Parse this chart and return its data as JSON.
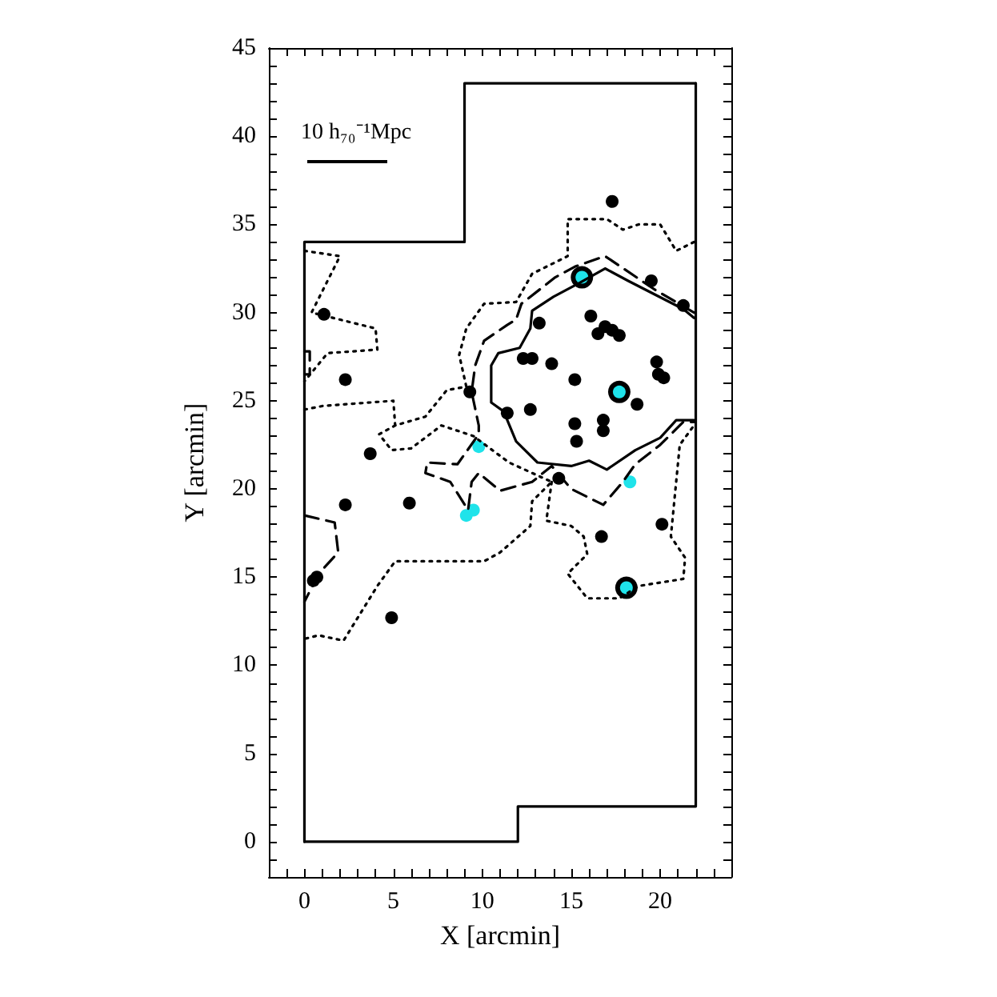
{
  "chart_data": {
    "type": "scatter",
    "xlabel": "X [arcmin]",
    "ylabel": "Y [arcmin]",
    "annotations": [
      "10 h₇₀⁻¹Mpc"
    ],
    "xlim": [
      -2,
      24
    ],
    "ylim": [
      -2,
      45
    ],
    "xticks": [
      {
        "value": -2,
        "label": null
      },
      {
        "value": -1,
        "label": null
      },
      0,
      {
        "value": 1,
        "label": null
      },
      {
        "value": 2,
        "label": null
      },
      {
        "value": 3,
        "label": null
      },
      {
        "value": 4,
        "label": null
      },
      5,
      {
        "value": 6,
        "label": null
      },
      {
        "value": 7,
        "label": null
      },
      {
        "value": 8,
        "label": null
      },
      {
        "value": 9,
        "label": null
      },
      10,
      {
        "value": 11,
        "label": null
      },
      {
        "value": 12,
        "label": null
      },
      {
        "value": 13,
        "label": null
      },
      {
        "value": 14,
        "label": null
      },
      15,
      {
        "value": 16,
        "label": null
      },
      {
        "value": 17,
        "label": null
      },
      {
        "value": 18,
        "label": null
      },
      {
        "value": 19,
        "label": null
      },
      20,
      {
        "value": 21,
        "label": null
      },
      {
        "value": 22,
        "label": null
      },
      {
        "value": 23,
        "label": null
      },
      {
        "value": 24,
        "label": null
      }
    ],
    "yticks": [
      {
        "value": -2,
        "label": null
      },
      {
        "value": -1,
        "label": null
      },
      0,
      {
        "value": 1,
        "label": null
      },
      {
        "value": 2,
        "label": null
      },
      {
        "value": 3,
        "label": null
      },
      {
        "value": 4,
        "label": null
      },
      5,
      {
        "value": 6,
        "label": null
      },
      {
        "value": 7,
        "label": null
      },
      {
        "value": 8,
        "label": null
      },
      {
        "value": 9,
        "label": null
      },
      10,
      {
        "value": 11,
        "label": null
      },
      {
        "value": 12,
        "label": null
      },
      {
        "value": 13,
        "label": null
      },
      {
        "value": 14,
        "label": null
      },
      15,
      {
        "value": 16,
        "label": null
      },
      {
        "value": 17,
        "label": null
      },
      {
        "value": 18,
        "label": null
      },
      {
        "value": 19,
        "label": null
      },
      20,
      {
        "value": 21,
        "label": null
      },
      {
        "value": 22,
        "label": null
      },
      {
        "value": 23,
        "label": null
      },
      {
        "value": 24,
        "label": null
      },
      25,
      {
        "value": 26,
        "label": null
      },
      {
        "value": 27,
        "label": null
      },
      {
        "value": 28,
        "label": null
      },
      {
        "value": 29,
        "label": null
      },
      30,
      {
        "value": 31,
        "label": null
      },
      {
        "value": 32,
        "label": null
      },
      {
        "value": 33,
        "label": null
      },
      {
        "value": 34,
        "label": null
      },
      35,
      {
        "value": 36,
        "label": null
      },
      {
        "value": 37,
        "label": null
      },
      {
        "value": 38,
        "label": null
      },
      {
        "value": 39,
        "label": null
      },
      40,
      {
        "value": 41,
        "label": null
      },
      {
        "value": 42,
        "label": null
      },
      {
        "value": 43,
        "label": null
      },
      {
        "value": 44,
        "label": null
      },
      45
    ],
    "series": [
      {
        "type": "line",
        "color": "#000000",
        "line_style": "solid",
        "marker": "none",
        "x": [
          0,
          12,
          12,
          22,
          22
        ],
        "values": [
          0,
          0,
          2,
          2,
          43
        ]
      },
      {
        "type": "line",
        "color": "#000000",
        "line_style": "solid",
        "marker": "none",
        "x": [
          22,
          9,
          9,
          0,
          0
        ],
        "values": [
          43,
          43,
          34,
          34,
          0
        ]
      },
      {
        "type": "line",
        "color": "#000000",
        "line_style": "dotted",
        "marker": "none",
        "x": [
          21.9,
          20.9,
          20.0,
          18.8,
          17.9,
          17.0,
          14.8,
          14.8,
          12.8,
          11.9,
          10.1,
          9.1,
          8.7,
          9.1,
          8.0,
          6.8,
          5.1,
          4.2,
          4.9,
          6.0,
          7.7,
          9.5,
          11.5,
          13.9,
          12.8,
          12.7,
          11.0,
          10.1,
          5.1,
          4.1,
          2.2,
          0.8,
          0
        ],
        "values": [
          34.0,
          33.5,
          35.0,
          35.0,
          34.7,
          35.3,
          35.3,
          33.2,
          32.2,
          30.6,
          30.5,
          29.1,
          27.6,
          25.8,
          25.6,
          24.1,
          23.6,
          23.1,
          22.2,
          22.3,
          23.6,
          23.0,
          21.5,
          20.4,
          19.3,
          17.9,
          16.4,
          15.9,
          15.9,
          14.5,
          11.4,
          11.7,
          11.5
        ]
      },
      {
        "type": "line",
        "color": "#000000",
        "line_style": "dotted",
        "marker": "none",
        "x": [
          13.9,
          13.6,
          15.0,
          15.7,
          15.9,
          14.8,
          15.9,
          17.7,
          18.8,
          21.3,
          21.4,
          20.6,
          21.1,
          21.9
        ],
        "values": [
          20.4,
          18.2,
          17.9,
          17.3,
          16.3,
          15.2,
          13.8,
          13.8,
          14.5,
          14.9,
          16.1,
          17.3,
          22.5,
          23.6
        ]
      },
      {
        "type": "line",
        "color": "#000000",
        "line_style": "dotted",
        "marker": "none",
        "x": [
          0,
          2.0,
          0.4,
          4.0,
          4.1,
          1.3,
          0
        ],
        "values": [
          33.5,
          33.2,
          30.0,
          29.1,
          27.9,
          27.7,
          26.1
        ]
      },
      {
        "type": "line",
        "color": "#000000",
        "line_style": "dotted",
        "marker": "none",
        "x": [
          0,
          1.0,
          5.0,
          5.1
        ],
        "values": [
          24.5,
          24.7,
          25.0,
          23.6
        ]
      },
      {
        "type": "line",
        "color": "#000000",
        "line_style": "dashed",
        "marker": "none",
        "x": [
          21.9,
          19.7,
          16.9,
          15.2,
          14.1,
          12.2,
          11.9,
          11.4,
          10.1,
          9.6,
          9.4,
          9.8,
          9.8,
          8.6,
          6.9,
          6.8,
          8.2,
          9.2,
          9.4,
          9.8,
          11.0,
          12.8,
          13.9,
          15.0,
          16.8,
          17.9,
          18.6,
          20.0,
          21.3,
          21.9
        ],
        "values": [
          30.0,
          31.3,
          33.2,
          32.6,
          32.0,
          30.5,
          29.6,
          29.3,
          28.4,
          27.0,
          25.5,
          23.6,
          23.1,
          21.4,
          21.5,
          20.9,
          20.4,
          18.8,
          20.4,
          20.9,
          19.9,
          20.4,
          21.3,
          20.0,
          19.1,
          20.4,
          21.4,
          22.5,
          23.8,
          23.8
        ]
      },
      {
        "type": "line",
        "color": "#000000",
        "line_style": "dashed",
        "marker": "none",
        "x": [
          0,
          1.7,
          1.9,
          0.8,
          0
        ],
        "values": [
          18.5,
          18.1,
          16.4,
          15.2,
          13.6
        ]
      },
      {
        "type": "line",
        "color": "#000000",
        "line_style": "dashed",
        "marker": "none",
        "x": [
          0,
          0.3,
          0.3,
          0
        ],
        "values": [
          27.8,
          27.8,
          26.5,
          26.5
        ]
      },
      {
        "type": "line",
        "color": "#000000",
        "line_style": "solid",
        "marker": "none",
        "x": [
          21.9,
          21.3,
          18.2,
          16.9,
          15.5,
          14.0,
          12.8,
          12.7,
          12.1,
          10.9,
          10.5,
          10.5,
          10.5,
          11.2,
          11.9,
          13.1,
          15.0,
          16.0,
          17.0,
          18.6,
          20.0,
          20.9,
          21.9
        ],
        "values": [
          29.7,
          30.2,
          31.8,
          32.5,
          31.7,
          30.9,
          30.1,
          29.1,
          28.0,
          27.7,
          27.0,
          25.8,
          24.9,
          24.4,
          22.7,
          21.5,
          21.3,
          21.6,
          21.1,
          22.2,
          22.9,
          23.9,
          23.9
        ]
      },
      {
        "type": "scatter",
        "color": "#000000",
        "marker": "circle",
        "x": [
          17.3,
          19.5,
          21.3,
          16.1,
          16.5,
          16.9,
          17.3,
          17.7,
          13.2,
          12.3,
          12.8,
          13.9,
          15.2,
          19.8,
          19.9,
          20.2,
          18.7,
          11.4,
          12.7,
          15.2,
          16.8,
          16.8,
          15.3,
          9.3,
          1.1,
          2.3,
          3.7,
          14.3,
          2.3,
          5.9,
          16.7,
          20.1,
          0.7,
          0.5,
          4.9
        ],
        "values": [
          36.3,
          31.8,
          30.4,
          29.8,
          28.8,
          29.2,
          29.0,
          28.7,
          29.4,
          27.4,
          27.4,
          27.1,
          26.2,
          27.2,
          26.5,
          26.3,
          24.8,
          24.3,
          24.5,
          23.7,
          23.9,
          23.3,
          22.7,
          25.5,
          29.9,
          26.2,
          22.0,
          20.6,
          19.1,
          19.2,
          17.3,
          18.0,
          15.0,
          14.8,
          12.7
        ]
      },
      {
        "type": "bubble",
        "color": "#000000",
        "marker": "circle",
        "x": [
          15.6,
          17.7,
          18.1
        ],
        "values": [
          32.0,
          25.5,
          14.4
        ],
        "sizes": [
          1,
          1,
          1
        ]
      },
      {
        "type": "scatter",
        "color": "#1fe3ea",
        "marker": "circle",
        "x": [
          15.6,
          17.7,
          18.1,
          9.8,
          18.3,
          9.5,
          9.1
        ],
        "values": [
          32.0,
          25.5,
          14.4,
          22.4,
          20.4,
          18.8,
          18.5
        ]
      }
    ]
  }
}
